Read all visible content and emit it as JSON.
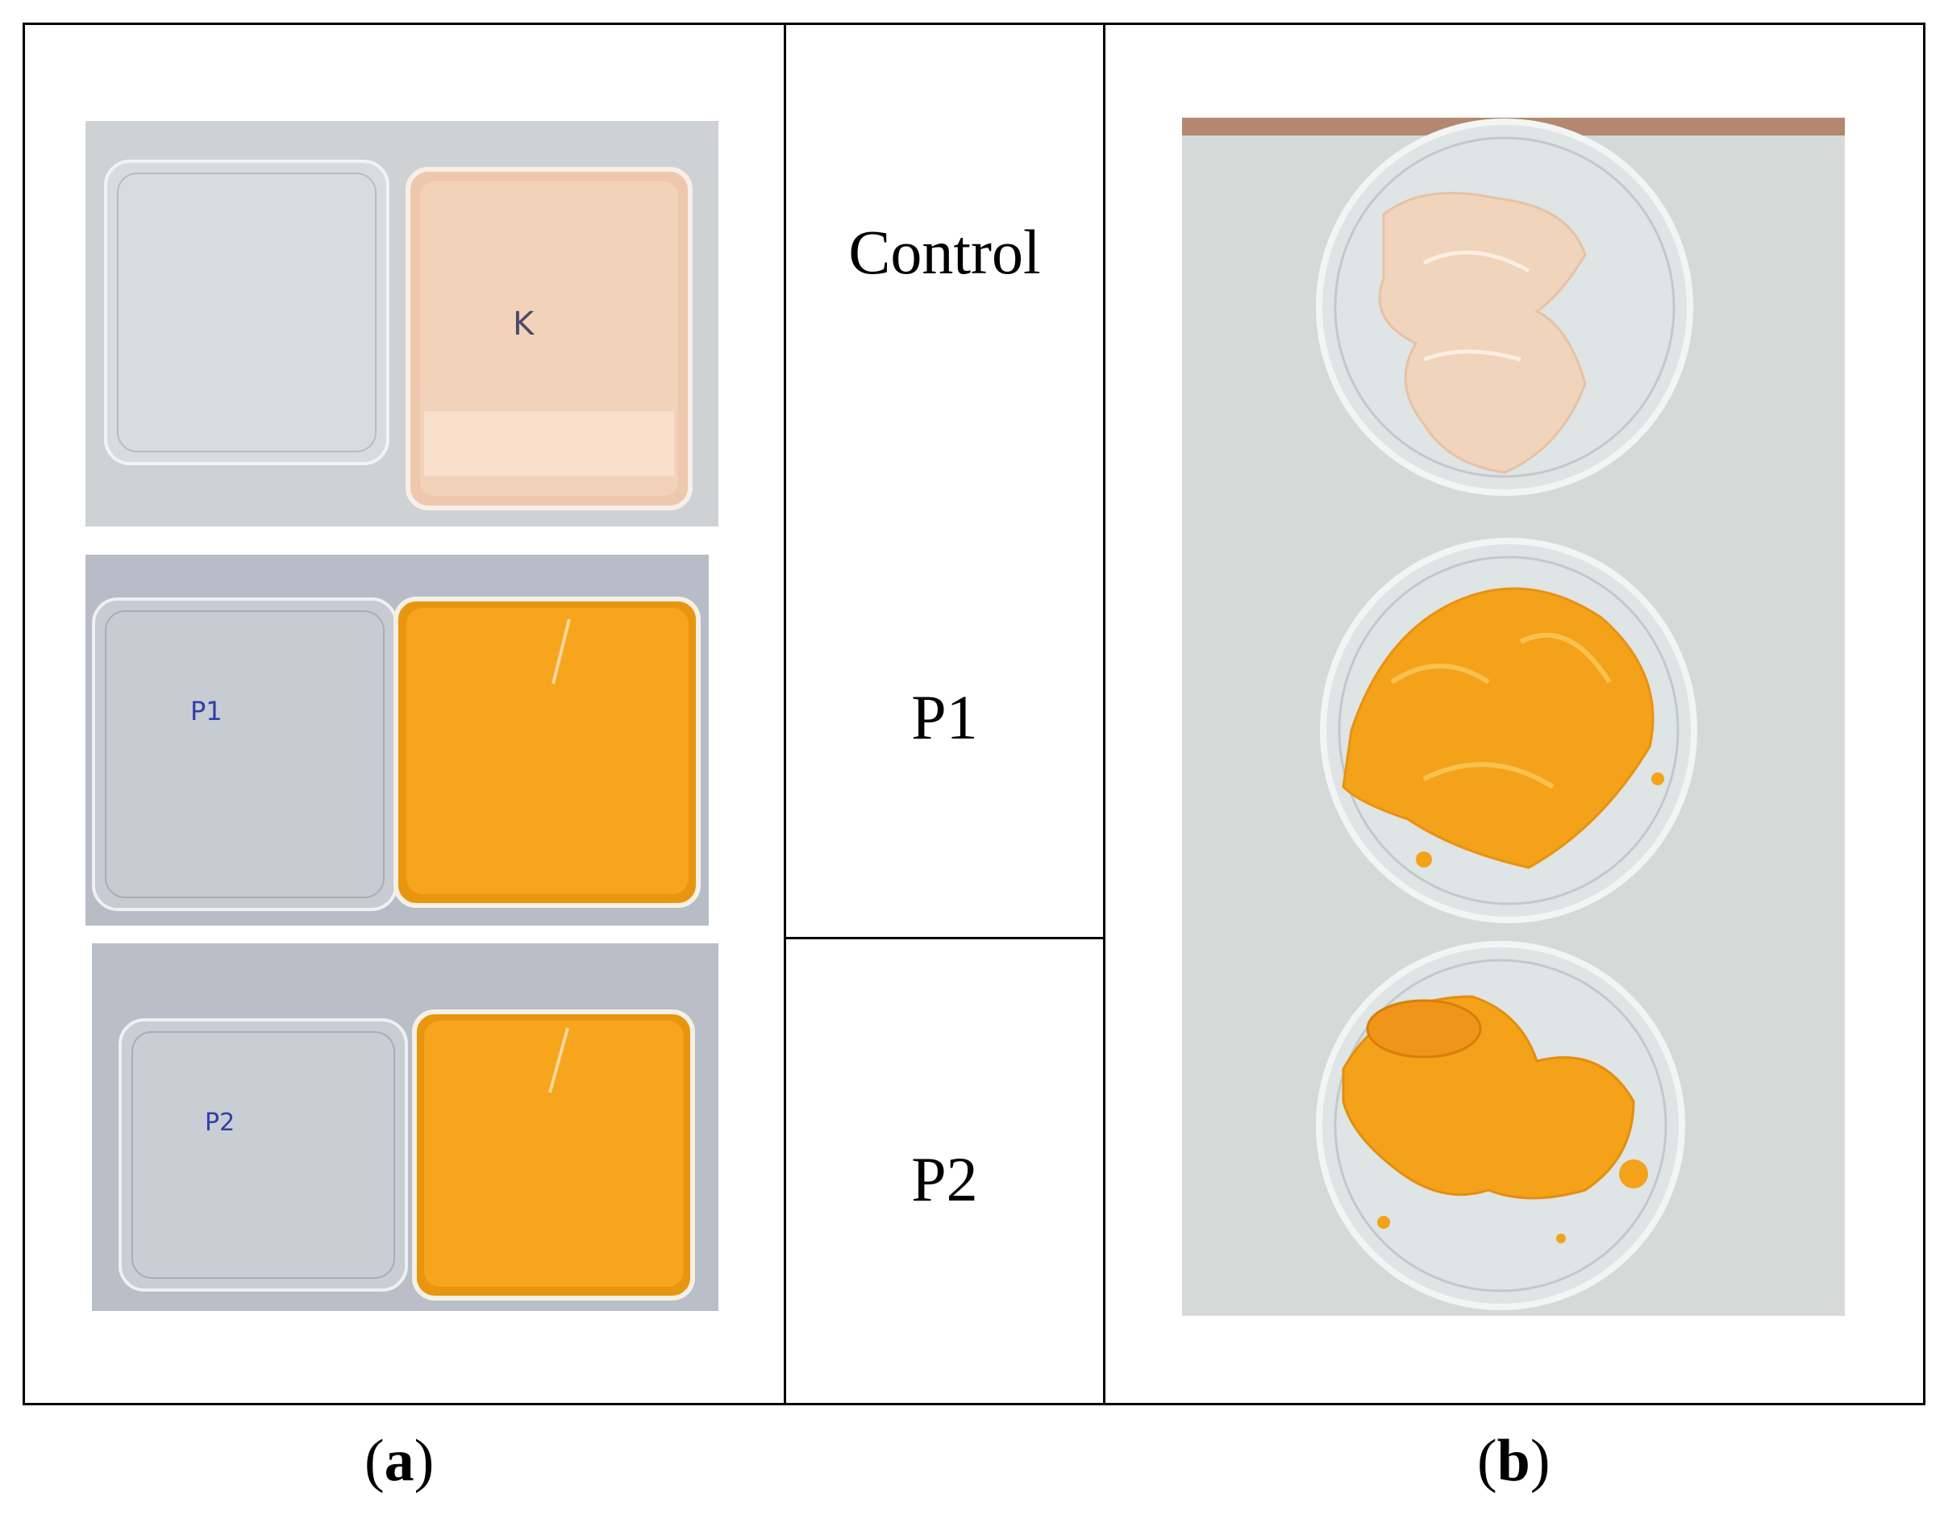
{
  "labels": {
    "control": "Control",
    "p1": "P1",
    "p2": "P2"
  },
  "captions": {
    "a_open": "(",
    "a_letter": "a",
    "a_close": ")",
    "b_open": "(",
    "b_letter": "b",
    "b_close": ")"
  },
  "handwriting": {
    "control_plate": "K",
    "p1_plate": "P1",
    "p2_plate": "P2"
  },
  "colors": {
    "control_film": "#f3d2ba",
    "orange_film": "#f6a51c",
    "orange_flakes": "#f3a21a",
    "background_gray": "#c8cbd0",
    "paper": "#d5dad9"
  }
}
